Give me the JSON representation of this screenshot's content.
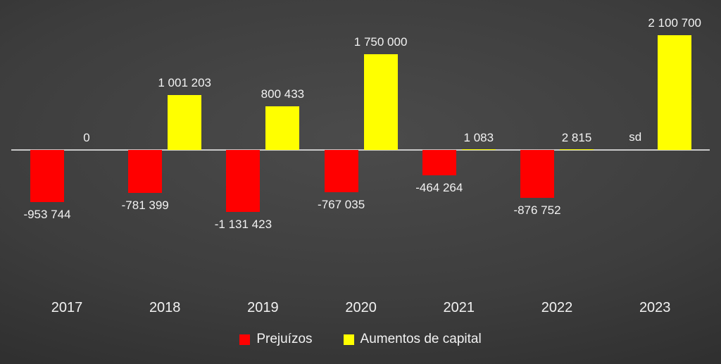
{
  "chart_data": {
    "type": "bar",
    "categories": [
      "2017",
      "2018",
      "2019",
      "2020",
      "2021",
      "2022",
      "2023"
    ],
    "series": [
      {
        "name": "Prejuízos",
        "color": "#ff0000",
        "values": [
          -953744,
          -781399,
          -1131423,
          -767035,
          -464264,
          -876752,
          null
        ],
        "labels": [
          "-953 744",
          "-781 399",
          "-1 131 423",
          "-767 035",
          "-464 264",
          "-876 752",
          "sd"
        ]
      },
      {
        "name": "Aumentos de capital",
        "color": "#ffff00",
        "values": [
          0,
          1001203,
          800433,
          1750000,
          1083,
          2815,
          2100700
        ],
        "labels": [
          "0",
          "1 001 203",
          "800 433",
          "1 750 000",
          "1 083",
          "2 815",
          "2 100 700"
        ]
      }
    ],
    "title": "",
    "xlabel": "",
    "ylabel": "",
    "ylim": [
      -1200000,
      2200000
    ],
    "grid": false,
    "legend_position": "bottom",
    "axis_color": "#c9c9c9",
    "text_color": "#f2f2f2"
  },
  "legend": {
    "items": [
      {
        "label": "Prejuízos",
        "color": "#ff0000"
      },
      {
        "label": "Aumentos de capital",
        "color": "#ffff00"
      }
    ]
  }
}
